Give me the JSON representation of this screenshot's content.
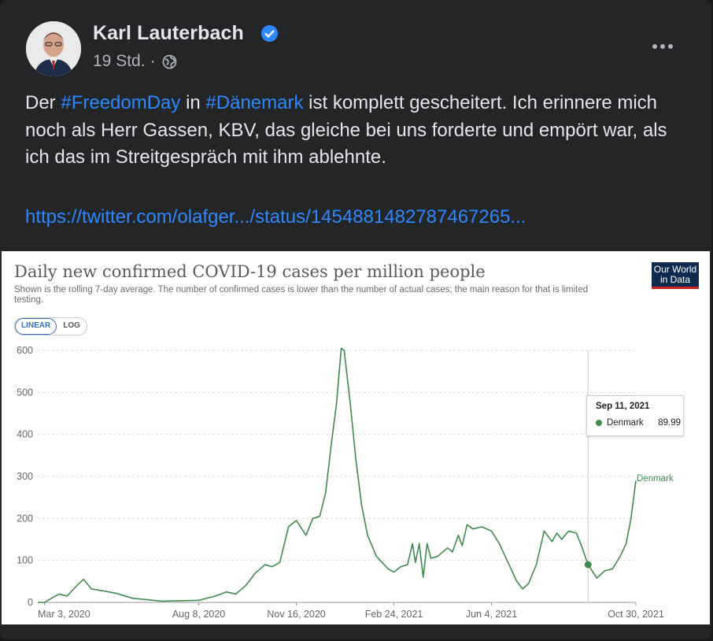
{
  "post": {
    "author": "Karl Lauterbach",
    "timestamp": "19 Std.",
    "separator": "·",
    "text_parts": [
      "Der ",
      "#FreedomDay",
      " in ",
      "#Dänemark",
      " ist komplett gescheitert. Ich erinnere mich noch als Herr Gassen, KBV, das gleiche bei uns forderte und empört war, als ich das im Streitgespräch mit ihm ablehnte."
    ],
    "link": "https://twitter.com/olafger.../status/1454881482787467265...",
    "icons": {
      "verified": "verified-badge-icon",
      "privacy": "globe-icon",
      "more": "more-options-icon"
    },
    "colors": {
      "background": "#242526",
      "text": "#e4e6eb",
      "secondary": "#b0b3b8",
      "link": "#2d88ff"
    }
  },
  "chart_header": {
    "title": "Daily new confirmed COVID-19 cases per million people",
    "subtitle": "Shown is the rolling 7-day average. The number of confirmed cases is lower than the number of actual cases; the main reason for that is limited testing.",
    "logo_lines": [
      "Our World",
      "in Data"
    ],
    "toggle": [
      "LINEAR",
      "LOG"
    ],
    "toggle_selected": "LINEAR"
  },
  "tooltip": {
    "date": "Sep 11, 2021",
    "series": "Denmark",
    "value": "89.99"
  },
  "chart_data": {
    "type": "line",
    "title": "Daily new confirmed COVID-19 cases per million people",
    "xlabel": "",
    "ylabel": "",
    "ylim": [
      0,
      600
    ],
    "yticks": [
      0,
      100,
      200,
      300,
      400,
      500,
      600
    ],
    "xticks": [
      "Mar 3, 2020",
      "Aug 8, 2020",
      "Nov 16, 2020",
      "Feb 24, 2021",
      "Jun 4, 2021",
      "Oct 30, 2021"
    ],
    "xrange": [
      "2020-02-25",
      "2021-10-30"
    ],
    "grid": true,
    "line_color": "#3f8b4e",
    "series": [
      {
        "name": "Denmark",
        "points": [
          [
            "2020-02-25",
            0
          ],
          [
            "2020-03-03",
            0
          ],
          [
            "2020-03-10",
            10
          ],
          [
            "2020-03-18",
            20
          ],
          [
            "2020-03-26",
            15
          ],
          [
            "2020-04-05",
            40
          ],
          [
            "2020-04-12",
            55
          ],
          [
            "2020-04-20",
            32
          ],
          [
            "2020-05-01",
            28
          ],
          [
            "2020-05-15",
            22
          ],
          [
            "2020-06-01",
            10
          ],
          [
            "2020-07-01",
            3
          ],
          [
            "2020-08-08",
            5
          ],
          [
            "2020-08-25",
            15
          ],
          [
            "2020-09-05",
            25
          ],
          [
            "2020-09-15",
            20
          ],
          [
            "2020-09-25",
            40
          ],
          [
            "2020-10-05",
            70
          ],
          [
            "2020-10-15",
            90
          ],
          [
            "2020-10-22",
            85
          ],
          [
            "2020-10-30",
            95
          ],
          [
            "2020-11-08",
            180
          ],
          [
            "2020-11-16",
            195
          ],
          [
            "2020-11-26",
            160
          ],
          [
            "2020-12-03",
            200
          ],
          [
            "2020-12-10",
            205
          ],
          [
            "2020-12-16",
            260
          ],
          [
            "2020-12-22",
            380
          ],
          [
            "2020-12-27",
            470
          ],
          [
            "2021-01-01",
            605
          ],
          [
            "2021-01-04",
            600
          ],
          [
            "2021-01-10",
            480
          ],
          [
            "2021-01-16",
            340
          ],
          [
            "2021-01-22",
            230
          ],
          [
            "2021-01-28",
            160
          ],
          [
            "2021-02-06",
            110
          ],
          [
            "2021-02-18",
            80
          ],
          [
            "2021-02-24",
            72
          ],
          [
            "2021-03-03",
            85
          ],
          [
            "2021-03-10",
            90
          ],
          [
            "2021-03-15",
            140
          ],
          [
            "2021-03-18",
            95
          ],
          [
            "2021-03-22",
            140
          ],
          [
            "2021-03-26",
            60
          ],
          [
            "2021-03-30",
            140
          ],
          [
            "2021-04-03",
            105
          ],
          [
            "2021-04-10",
            110
          ],
          [
            "2021-04-20",
            130
          ],
          [
            "2021-04-25",
            120
          ],
          [
            "2021-05-01",
            160
          ],
          [
            "2021-05-05",
            135
          ],
          [
            "2021-05-10",
            185
          ],
          [
            "2021-05-16",
            175
          ],
          [
            "2021-05-25",
            180
          ],
          [
            "2021-06-04",
            170
          ],
          [
            "2021-06-12",
            140
          ],
          [
            "2021-06-20",
            100
          ],
          [
            "2021-06-30",
            50
          ],
          [
            "2021-07-06",
            32
          ],
          [
            "2021-07-12",
            45
          ],
          [
            "2021-07-20",
            90
          ],
          [
            "2021-07-28",
            170
          ],
          [
            "2021-08-05",
            145
          ],
          [
            "2021-08-10",
            165
          ],
          [
            "2021-08-15",
            150
          ],
          [
            "2021-08-22",
            170
          ],
          [
            "2021-08-30",
            165
          ],
          [
            "2021-09-05",
            130
          ],
          [
            "2021-09-11",
            89.99
          ],
          [
            "2021-09-20",
            58
          ],
          [
            "2021-09-28",
            75
          ],
          [
            "2021-10-06",
            80
          ],
          [
            "2021-10-14",
            110
          ],
          [
            "2021-10-20",
            140
          ],
          [
            "2021-10-25",
            200
          ],
          [
            "2021-10-30",
            290
          ]
        ]
      }
    ],
    "highlight": {
      "date": "2021-09-11",
      "value": 89.99
    }
  }
}
